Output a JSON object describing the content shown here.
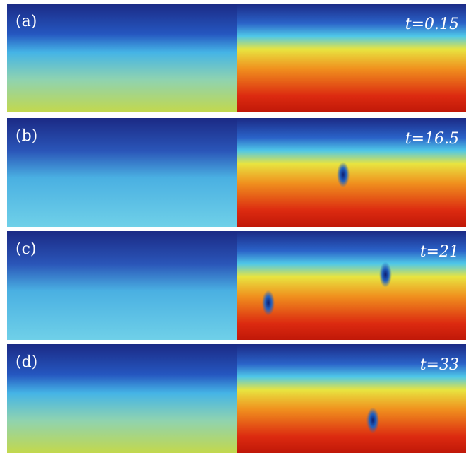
{
  "panels": [
    {
      "label": "(a)",
      "time": "t=0.15"
    },
    {
      "label": "(b)",
      "time": "t=16.5"
    },
    {
      "label": "(c)",
      "time": "t=21"
    },
    {
      "label": "(d)",
      "time": "t=33"
    }
  ]
}
